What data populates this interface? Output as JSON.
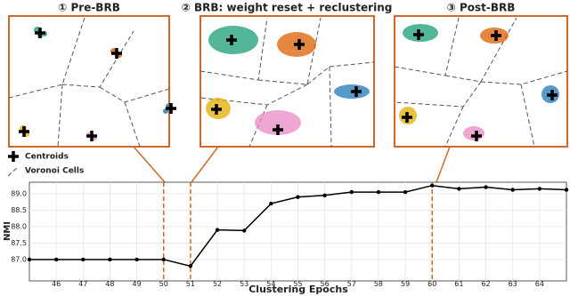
{
  "chart_data": {
    "type": "line",
    "panel_titles": [
      "① Pre-BRB",
      "② BRB: weight reset + reclustering",
      "③ Post-BRB"
    ],
    "legend": [
      "Centroids",
      "Voronoi Cells"
    ],
    "x_label": "Clustering Epochs",
    "y_label": "NMI",
    "x": [
      45,
      46,
      47,
      48,
      49,
      50,
      51,
      52,
      53,
      54,
      55,
      56,
      57,
      58,
      59,
      60,
      61,
      62,
      63,
      64,
      65
    ],
    "values": [
      87.0,
      87.0,
      87.0,
      87.0,
      87.0,
      87.0,
      86.8,
      87.9,
      87.88,
      88.7,
      88.9,
      88.95,
      89.05,
      89.05,
      89.05,
      89.25,
      89.15,
      89.2,
      89.12,
      89.15,
      89.12
    ],
    "color": "#000000",
    "highlight_epochs": [
      50,
      51,
      60
    ],
    "highlight_color": "#d0692a",
    "xlim": [
      45,
      65
    ],
    "xticks": [
      46,
      47,
      48,
      49,
      50,
      51,
      52,
      53,
      54,
      55,
      56,
      57,
      58,
      59,
      60,
      61,
      62,
      63,
      64
    ],
    "ylim": [
      86.35,
      89.35
    ],
    "yticks": [
      {
        "value": 87,
        "label": "87.0"
      },
      {
        "value": 87.5,
        "label": "87.5"
      },
      {
        "value": 88,
        "label": "88.0"
      },
      {
        "value": 88.5,
        "label": "88.5"
      },
      {
        "value": 89,
        "label": "89.0"
      }
    ],
    "grid": true
  }
}
